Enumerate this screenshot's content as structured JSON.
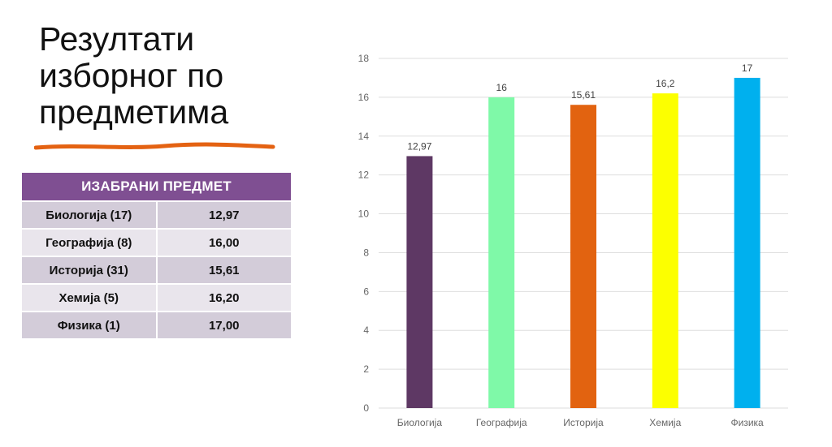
{
  "slide": {
    "title_lines": [
      "Резултати",
      "изборног по",
      "предметима"
    ]
  },
  "table": {
    "header": "ИЗАБРАНИ ПРЕДМЕТ",
    "rows": [
      {
        "subject": "Биологија (17)",
        "score": "12,97"
      },
      {
        "subject": "Географија (8)",
        "score": "16,00"
      },
      {
        "subject": "Историја (31)",
        "score": "15,61"
      },
      {
        "subject": "Хемија (5)",
        "score": "16,20"
      },
      {
        "subject": "Физика (1)",
        "score": "17,00"
      }
    ],
    "colors": {
      "header": "#7f4f92",
      "row_dark": "#d3ccd9",
      "row_light": "#e9e5ec"
    }
  },
  "decor": {
    "underline_color": "#e46212"
  },
  "chart_data": {
    "type": "bar",
    "categories": [
      "Биологија",
      "Географија",
      "Историја",
      "Хемија",
      "Физика"
    ],
    "values": [
      12.97,
      16,
      15.61,
      16.2,
      17
    ],
    "data_labels": [
      "12,97",
      "16",
      "15,61",
      "16,2",
      "17"
    ],
    "colors": [
      "#5e3864",
      "#7ff9a8",
      "#e26310",
      "#fcff00",
      "#00b0ee"
    ],
    "ylim": [
      0,
      18
    ],
    "yticks": [
      0,
      2,
      4,
      6,
      8,
      10,
      12,
      14,
      16,
      18
    ],
    "grid": true,
    "legend": "none"
  }
}
